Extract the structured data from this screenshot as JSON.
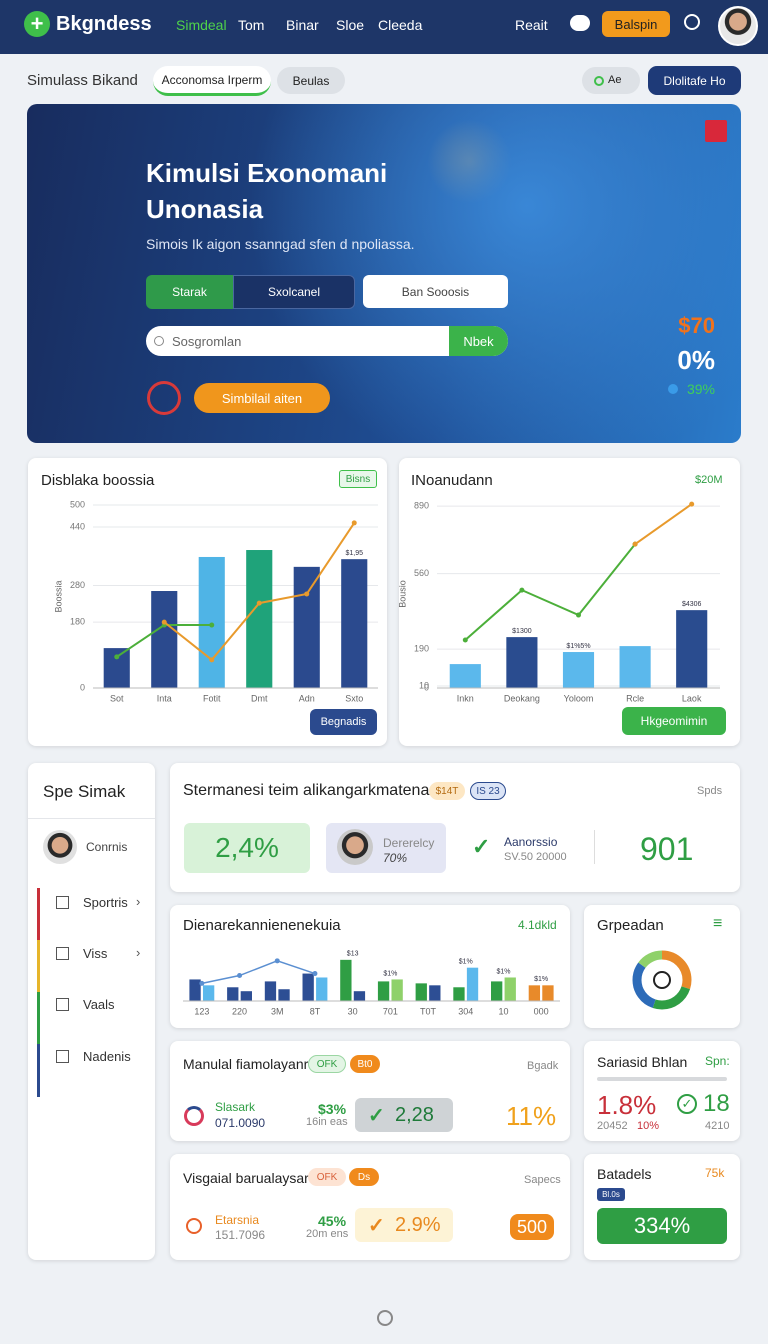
{
  "nav": {
    "logo": "Bkgndess",
    "links": [
      "Simdeal",
      "Tom",
      "Binar",
      "Sloe",
      "Cleeda"
    ],
    "right_link": "Reait",
    "button": "Balspin"
  },
  "toolbar": {
    "title": "Simulass Bikand",
    "tabs": [
      "Acconomsa Irperm",
      "Beulas"
    ],
    "filter": "Ae",
    "button": "Dlolitafe Ho"
  },
  "hero": {
    "title": [
      "Kimulsi Exonomani",
      "Unonasia"
    ],
    "subtitle": "Simois Ik aigon ssanngad sfen d npoliassa.",
    "toggle": [
      "Starak",
      "Sxolcanel"
    ],
    "option": "Ban Sooosis",
    "search_placeholder": "Sosgromlan",
    "search_button": "Nbek",
    "action": "Simbilail aiten",
    "stats": [
      "$70",
      "0%",
      "39%"
    ]
  },
  "left_chart": {
    "type": "bar_line",
    "title": "Disblaka boossia",
    "badge": "Bisns",
    "y_label": "Boossia",
    "categories": [
      "Sot",
      "Inta",
      "Fotit",
      "Dmt",
      "Adn",
      "Sxto"
    ],
    "bars": {
      "values": [
        109,
        265,
        358,
        377,
        331,
        352
      ],
      "colors": [
        "#2b4a8e",
        "#2b4a8e",
        "#4fb4e6",
        "#1fa37a",
        "#2b4a8e",
        "#2b4a8e"
      ]
    },
    "lines": [
      {
        "color": "#4caf3a",
        "values": [
          85,
          172,
          172,
          null,
          null,
          null
        ]
      },
      {
        "color": "#e89a2c",
        "values": [
          null,
          180,
          77,
          232,
          257,
          451
        ]
      }
    ],
    "annotations": [
      null,
      null,
      null,
      null,
      null,
      "$1,95"
    ],
    "ylim": [
      0,
      500
    ],
    "yticks": [
      0,
      180,
      280,
      440,
      500
    ],
    "grid": true,
    "button": "Begnadis"
  },
  "right_chart": {
    "type": "bar_line",
    "title": "INoanudann",
    "badge": "$20M",
    "y_label": "Bousio",
    "categories": [
      "Inkn",
      "Deokang",
      "Yoloom",
      "Rcle",
      "Laok"
    ],
    "bars": {
      "values": [
        117,
        249,
        176,
        205,
        381
      ],
      "colors": [
        "#5bb8ec",
        "#2a4c8f",
        "#5bb8ec",
        "#5bb8ec",
        "#2a4c8f"
      ]
    },
    "lines": [
      {
        "color": "#4caf3a",
        "values": [
          235,
          479,
          357,
          704,
          null
        ]
      },
      {
        "color": "#e89a2c",
        "values": [
          null,
          null,
          null,
          704,
          900
        ]
      }
    ],
    "annotations": [
      null,
      "$1300",
      "$1%5%",
      null,
      "$4306"
    ],
    "ylim": [
      0,
      920
    ],
    "yticks": [
      0,
      10,
      190,
      560,
      890
    ],
    "grid": true,
    "button": "Hkgeomimin"
  },
  "sidebar": {
    "title": "Spe Simak",
    "user": "Conrnis",
    "items": [
      "Sportris",
      "Viss",
      "Vaals",
      "Nadenis"
    ]
  },
  "stat_card": {
    "title": "Stermanesi teim alikangarkmatenar",
    "badges": [
      "$14T",
      "IS 23"
    ],
    "corner": "Spds",
    "stat": "2,4%",
    "person": {
      "name": "Dererelcy",
      "value": "70%"
    },
    "check": {
      "label": "Aanorssio",
      "sub": "SV.50 20000"
    },
    "big": "901"
  },
  "mini_chart": {
    "type": "bar_line",
    "title": "Dienarekannienenekuia",
    "badge": "4.1dkld",
    "categories": [
      "123",
      "220",
      "3M",
      "8T",
      "30",
      "701",
      "T0T",
      "304",
      "10",
      "000"
    ],
    "series": [
      {
        "values": [
          22,
          14,
          20,
          28,
          42,
          20,
          18,
          14,
          20,
          16
        ],
        "colors": [
          "#2d4e94",
          "#2d4e94",
          "#2d4e94",
          "#2d4e94",
          "#2f9e44",
          "#2f9e44",
          "#2f9e44",
          "#2f9e44",
          "#2f9e44",
          "#e88a2a"
        ]
      },
      {
        "values": [
          16,
          10,
          12,
          24,
          10,
          22,
          16,
          34,
          24,
          16
        ],
        "colors": [
          "#5bb8ec",
          "#2d4e94",
          "#2d4e94",
          "#5bb8ec",
          "#2d4e94",
          "#8fd16a",
          "#2d4e94",
          "#5bb8ec",
          "#8fd16a",
          "#e88a2a"
        ]
      }
    ],
    "line": {
      "color": "#5b8fd1",
      "values": [
        18,
        26,
        41,
        28,
        null,
        null,
        null,
        null,
        null,
        null
      ]
    },
    "annotations": [
      null,
      null,
      null,
      null,
      "$13",
      "$1%",
      null,
      "$1%",
      "$1%",
      "$1%"
    ],
    "ylim": [
      0,
      50
    ]
  },
  "donut": {
    "type": "donut",
    "title": "Grpeadan",
    "values": [
      30,
      25,
      30,
      15
    ],
    "colors": [
      "#e88a2a",
      "#2f9e44",
      "#2d6bb8",
      "#8fd16a"
    ]
  },
  "card_m": {
    "title": "Manulal fiamolayanr",
    "badges": [
      "OFK",
      "Bt0"
    ],
    "corner": "Bgadk",
    "item": "Slasark",
    "item_sub": "071.0090",
    "pct": "$3%",
    "pct_sub": "16in eas",
    "check": "2,28",
    "big": "11%"
  },
  "card_s": {
    "title": "Sariasid Bhlan",
    "corner": "Spn:",
    "big": "1.8%",
    "big_sub": [
      "20452",
      "10%"
    ],
    "num": "18",
    "num_sub": "4210"
  },
  "card_v": {
    "title": "Visgaial barualaysar",
    "badges": [
      "OFK",
      "Ds"
    ],
    "corner": "Sapecs",
    "item": "Etarsnia",
    "item_sub": "151.7096",
    "pct": "45%",
    "pct_sub": "20m ens",
    "check": "2.9%",
    "big": "500"
  },
  "card_b": {
    "title": "Batadels",
    "corner": "75k",
    "badge": "Bl.0s",
    "bar": "334%"
  }
}
